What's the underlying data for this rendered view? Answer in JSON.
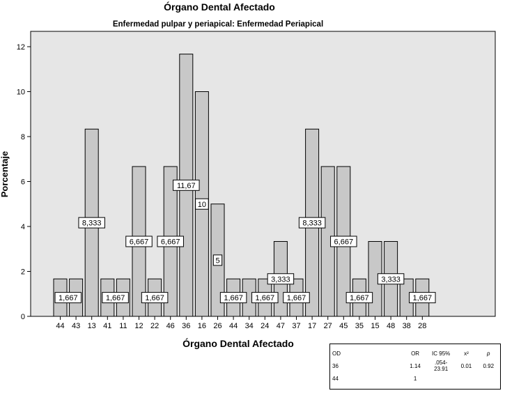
{
  "chart_data": {
    "type": "bar",
    "title": "Órgano Dental Afectado",
    "subtitle": "Enfermedad pulpar y periapical: Enfermedad Periapical",
    "xlabel": "Órgano Dental Afectado",
    "ylabel": "Porcentaje",
    "ylim": [
      0,
      12.5
    ],
    "yticks": [
      0,
      2,
      4,
      6,
      8,
      10,
      12
    ],
    "grid": false,
    "categories": [
      "44",
      "43",
      "13",
      "41",
      "11",
      "12",
      "22",
      "46",
      "36",
      "16",
      "26",
      "44",
      "34",
      "24",
      "47",
      "37",
      "17",
      "27",
      "45",
      "35",
      "15",
      "48",
      "38",
      "28"
    ],
    "values": [
      1.667,
      1.667,
      8.333,
      1.667,
      1.667,
      6.667,
      1.667,
      6.667,
      11.67,
      10,
      5,
      1.667,
      1.667,
      1.667,
      3.333,
      1.667,
      8.333,
      6.667,
      6.667,
      1.667,
      3.333,
      3.333,
      1.667,
      1.667
    ],
    "data_labels": [
      {
        "text": "1,667",
        "bars": [
          0,
          1
        ]
      },
      {
        "text": "8,333",
        "bars": [
          2
        ]
      },
      {
        "text": "1,667",
        "bars": [
          3,
          4
        ]
      },
      {
        "text": "6,667",
        "bars": [
          5
        ]
      },
      {
        "text": "1,667",
        "bars": [
          6
        ]
      },
      {
        "text": "6,667",
        "bars": [
          7
        ]
      },
      {
        "text": "11,67",
        "bars": [
          8
        ]
      },
      {
        "text": "10",
        "bars": [
          9
        ]
      },
      {
        "text": "5",
        "bars": [
          10
        ]
      },
      {
        "text": "1,667",
        "bars": [
          11
        ]
      },
      {
        "text": "1,667",
        "bars": [
          13
        ]
      },
      {
        "text": "3,333",
        "bars": [
          14
        ]
      },
      {
        "text": "1,667",
        "bars": [
          15
        ]
      },
      {
        "text": "8,333",
        "bars": [
          16
        ]
      },
      {
        "text": "6,667",
        "bars": [
          18
        ]
      },
      {
        "text": "1,667",
        "bars": [
          19
        ]
      },
      {
        "text": "3,333",
        "bars": [
          21
        ]
      },
      {
        "text": "1,667",
        "bars": [
          23
        ]
      }
    ],
    "colors": {
      "bar_fill": "#c8c8c8",
      "plot_bg": "#e6e6e6",
      "stroke": "#000000"
    }
  },
  "stats_table": {
    "headers": [
      "OD",
      "OR",
      "IC 95%",
      "x²",
      "p"
    ],
    "rows": [
      {
        "od": "36",
        "or": "1.14",
        "ic_line1": ".054-",
        "ic_line2": "23.91",
        "chi": "0.01",
        "p": "0.92"
      },
      {
        "od": "44",
        "or": "1",
        "ic_line1": "",
        "ic_line2": "",
        "chi": "",
        "p": ""
      }
    ]
  }
}
